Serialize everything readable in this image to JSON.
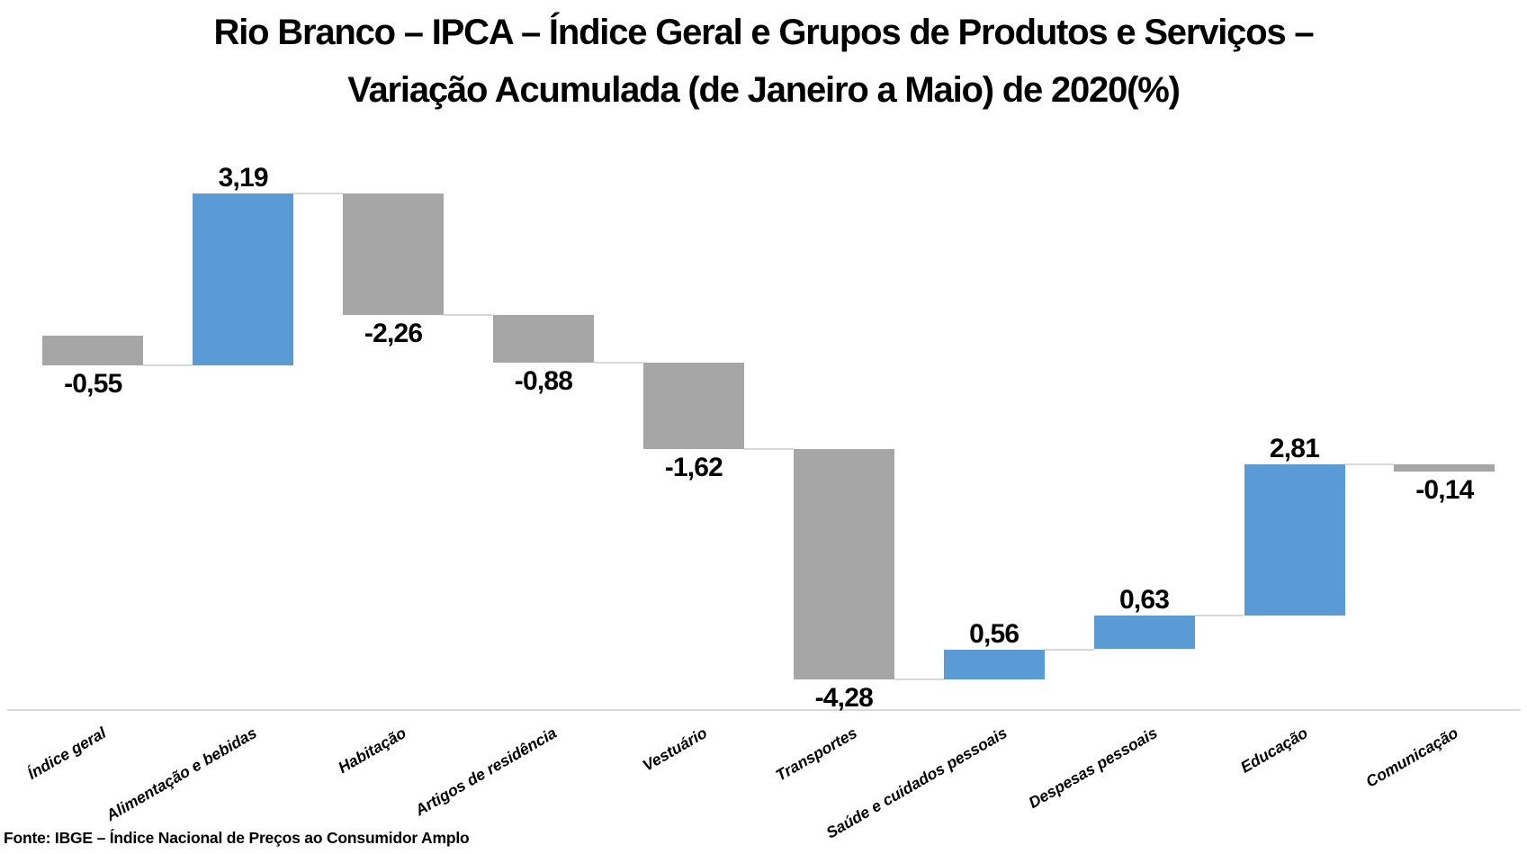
{
  "header": {
    "title_lines": [
      "Rio Branco – IPCA – Índice Geral e Grupos de Produtos e Serviços –",
      "Variação Acumulada (de Janeiro a Maio) de 2020(%)"
    ]
  },
  "chart_data": {
    "type": "bar",
    "variant": "waterfall",
    "title": "Rio Branco – IPCA – Índice Geral e Grupos de Produtos e Serviços – Variação Acumulada (de Janeiro a Maio) de 2020(%)",
    "categories": [
      "Índice geral",
      "Alimentação e bebidas",
      "Habitação",
      "Artigos de residência",
      "Vestuário",
      "Transportes",
      "Saúde e cuidados pessoais",
      "Despesas pessoais",
      "Educação",
      "Comunicação"
    ],
    "values": [
      -0.55,
      3.19,
      -2.26,
      -0.88,
      -1.62,
      -4.28,
      0.56,
      0.63,
      2.81,
      -0.14
    ],
    "value_labels": [
      "-0,55",
      "3,19",
      "-2,26",
      "-0,88",
      "-1,62",
      "-4,28",
      "0,56",
      "0,63",
      "2,81",
      "-0,14"
    ],
    "cumulative_levels": [
      -0.55,
      2.64,
      0.38,
      -0.5,
      -2.12,
      -6.4,
      -5.84,
      -5.21,
      -2.4,
      -2.54
    ],
    "unit": "%",
    "xlabel": "",
    "ylabel": "",
    "legend": "none",
    "gridlines": "off",
    "first_bar_starts_at_zero": true,
    "colors": {
      "positive": "#5B9BD5",
      "negative": "#A6A6A6",
      "connector": "#D9D9D9",
      "axis": "#D9D9D9",
      "text": "#000000"
    }
  },
  "footer": {
    "source": "Fonte: IBGE – Índice Nacional de Preços ao Consumidor Amplo"
  }
}
